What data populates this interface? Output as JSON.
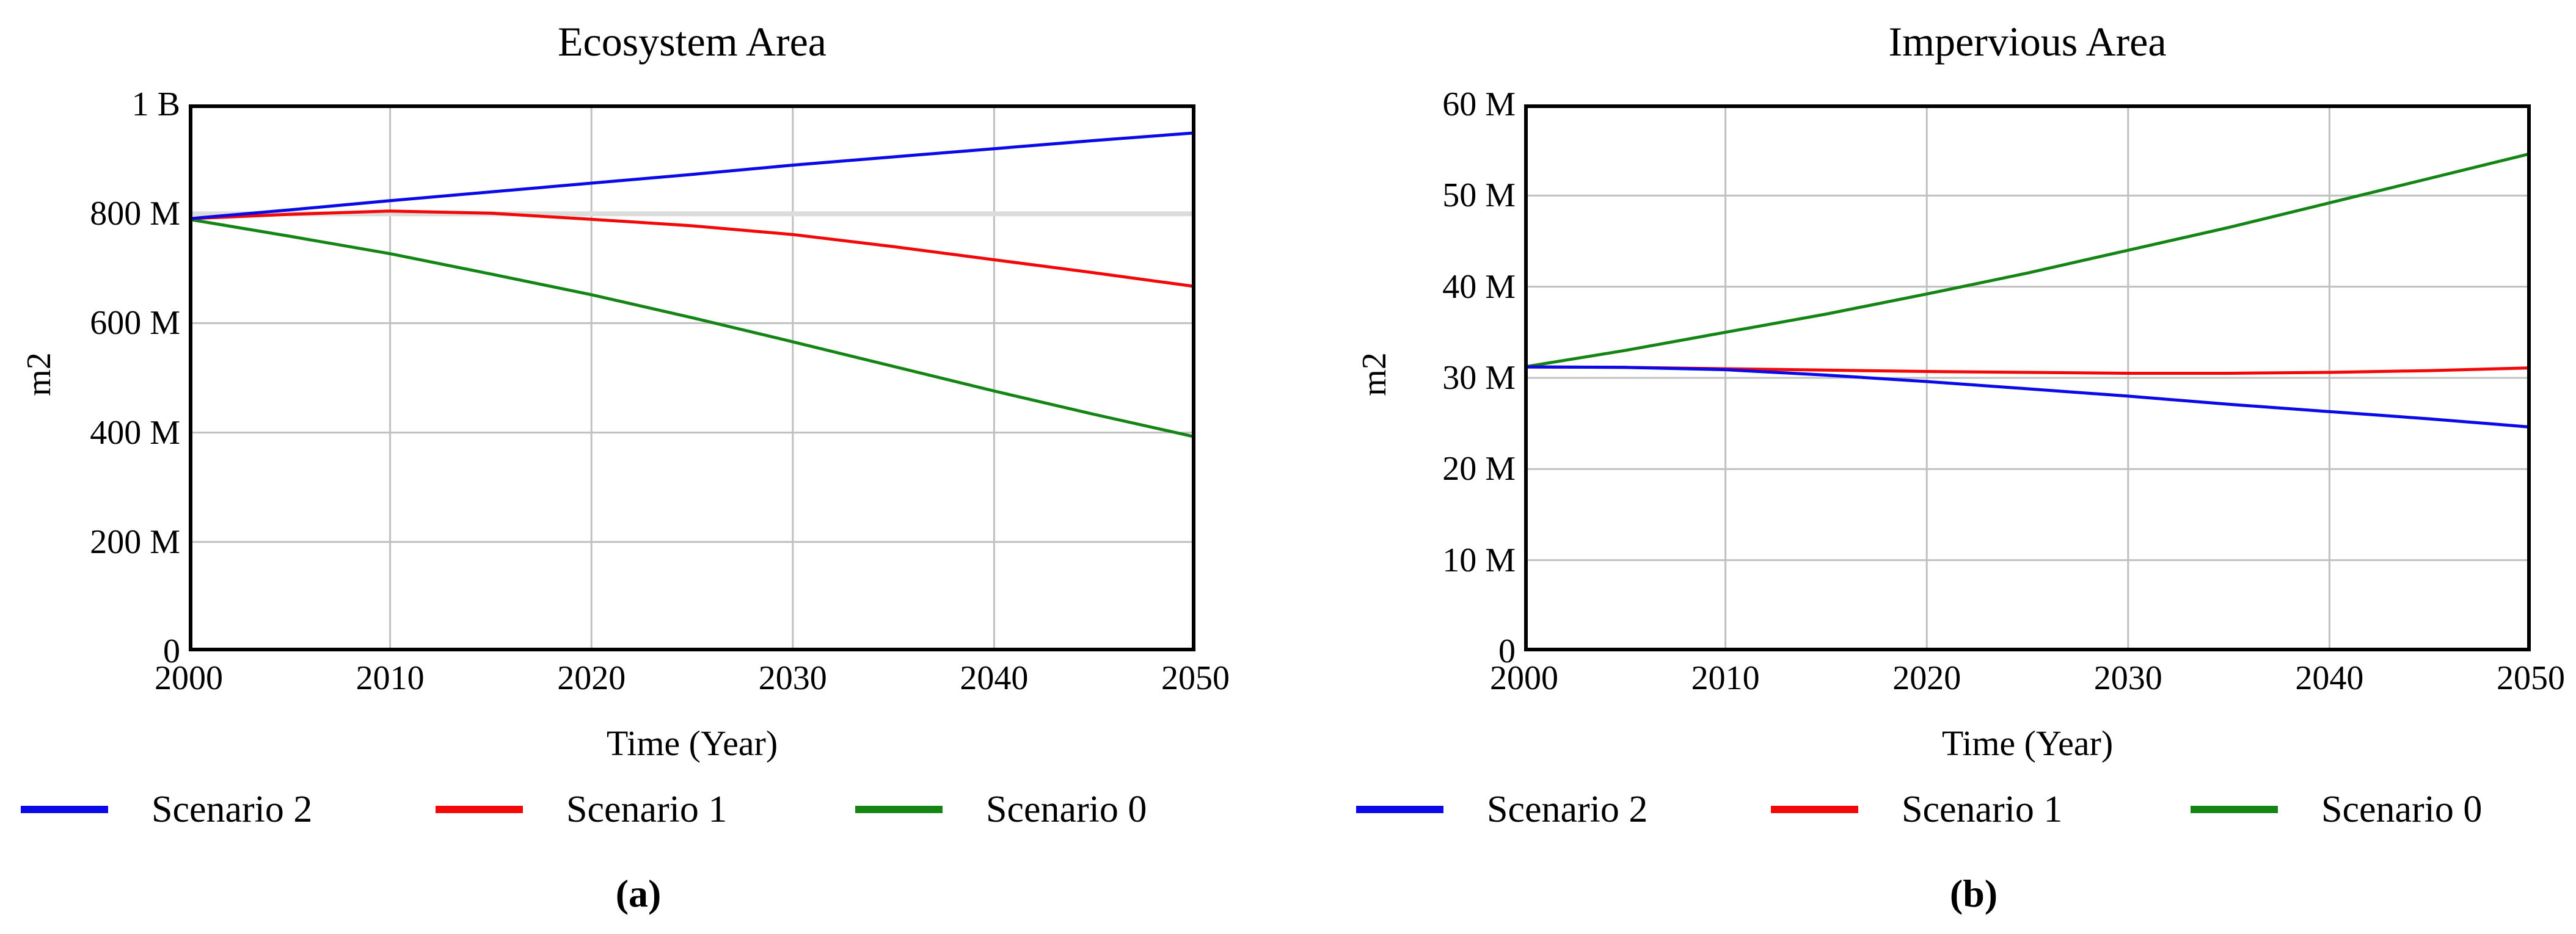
{
  "page": {
    "background": "#ffffff"
  },
  "colors": {
    "scenario2_blue": "#0a0ae8",
    "scenario1_red": "#f20808",
    "scenario0_green": "#148514",
    "gridline_gray": "#c0c0c0",
    "highlight_gridline_gray": "#dcdcdc",
    "frame_black": "#000000"
  },
  "chart_data": [
    {
      "panel": "a",
      "type": "line",
      "title": "Ecosystem Area",
      "xlabel": "Time (Year)",
      "ylabel": "m2",
      "caption": "(a)",
      "grid": true,
      "legend_position": "bottom",
      "xlim": [
        2000,
        2050
      ],
      "ylim_millions": [
        0,
        1000
      ],
      "x_ticks": [
        2000,
        2010,
        2020,
        2030,
        2040,
        2050
      ],
      "x_tick_labels": [
        "2000",
        "2010",
        "2020",
        "2030",
        "2040",
        "2050"
      ],
      "y_ticks": [
        {
          "value": 1000,
          "label": "1 B"
        },
        {
          "value": 800,
          "label": "800 M"
        },
        {
          "value": 600,
          "label": "600 M"
        },
        {
          "value": 400,
          "label": "400 M"
        },
        {
          "value": 200,
          "label": "200 M"
        },
        {
          "value": 0,
          "label": "0"
        }
      ],
      "highlight_gridline_value": 800,
      "grid_color": "#c0c0c0",
      "highlight_gridline_color": "#dcdcdc",
      "x": [
        2000,
        2005,
        2010,
        2015,
        2020,
        2025,
        2030,
        2035,
        2040,
        2045,
        2050
      ],
      "series": [
        {
          "name": "Scenario 2",
          "color": "#0a0ae8",
          "values_millions": [
            791,
            807,
            824,
            840,
            856,
            872,
            889,
            904,
            919,
            934,
            948
          ]
        },
        {
          "name": "Scenario 1",
          "color": "#f20808",
          "values_millions": [
            791,
            799,
            805,
            801,
            790,
            778,
            762,
            740,
            716,
            692,
            667
          ]
        },
        {
          "name": "Scenario 0",
          "color": "#148514",
          "values_millions": [
            790,
            759,
            727,
            690,
            652,
            610,
            566,
            521,
            476,
            433,
            392
          ]
        }
      ]
    },
    {
      "panel": "b",
      "type": "line",
      "title": "Impervious Area",
      "xlabel": "Time (Year)",
      "ylabel": "m2",
      "caption": "(b)",
      "grid": true,
      "legend_position": "bottom",
      "xlim": [
        2000,
        2050
      ],
      "ylim_millions": [
        0,
        60
      ],
      "x_ticks": [
        2000,
        2010,
        2020,
        2030,
        2040,
        2050
      ],
      "x_tick_labels": [
        "2000",
        "2010",
        "2020",
        "2030",
        "2040",
        "2050"
      ],
      "y_ticks": [
        {
          "value": 60,
          "label": "60 M"
        },
        {
          "value": 50,
          "label": "50 M"
        },
        {
          "value": 40,
          "label": "40 M"
        },
        {
          "value": 30,
          "label": "30 M"
        },
        {
          "value": 20,
          "label": "20 M"
        },
        {
          "value": 10,
          "label": "10 M"
        },
        {
          "value": 0,
          "label": "0"
        }
      ],
      "grid_color": "#c0c0c0",
      "highlight_gridline_color": "#dcdcdc",
      "x": [
        2000,
        2005,
        2010,
        2015,
        2020,
        2025,
        2030,
        2035,
        2040,
        2045,
        2050
      ],
      "series": [
        {
          "name": "Scenario 2",
          "color": "#0a0ae8",
          "values_millions": [
            31.2,
            31.15,
            30.9,
            30.3,
            29.6,
            28.8,
            28.0,
            27.1,
            26.3,
            25.5,
            24.6
          ]
        },
        {
          "name": "Scenario 1",
          "color": "#f20808",
          "values_millions": [
            31.2,
            31.15,
            31.0,
            30.85,
            30.7,
            30.6,
            30.5,
            30.5,
            30.6,
            30.8,
            31.1
          ]
        },
        {
          "name": "Scenario 0",
          "color": "#148514",
          "values_millions": [
            31.2,
            33.0,
            35.0,
            37.0,
            39.2,
            41.5,
            44.0,
            46.5,
            49.2,
            51.9,
            54.6
          ]
        }
      ]
    }
  ]
}
